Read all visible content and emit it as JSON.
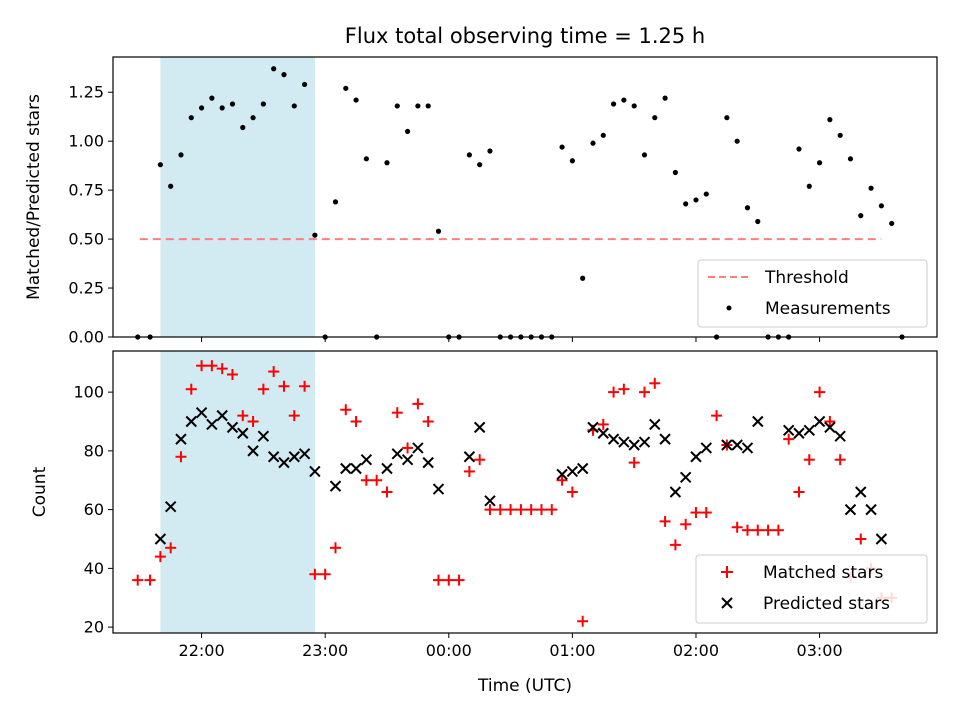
{
  "chart_data": [
    {
      "type": "scatter",
      "title": "Flux total observing time = 1.25 h",
      "xlabel": "",
      "ylabel": "Matched/Predicted stars",
      "xlim": [
        "21:17",
        "03:57"
      ],
      "ylim": [
        0,
        1.43
      ],
      "yticks": [
        "0.00",
        "0.25",
        "0.50",
        "0.75",
        "1.00",
        "1.25"
      ],
      "grid": false,
      "legend_position": "lower-right",
      "highlight_span": {
        "start": "21:40",
        "end": "22:55",
        "color": "#add8e6"
      },
      "threshold": {
        "name": "Threshold",
        "value": 0.5,
        "x_start": "21:30",
        "x_end": "03:30",
        "color": "#ff7f7f"
      },
      "series": [
        {
          "name": "Measurements",
          "color": "#000000",
          "points": [
            [
              "21:29",
              0
            ],
            [
              "21:35",
              0
            ],
            [
              "21:40",
              0.88
            ],
            [
              "21:45",
              0.77
            ],
            [
              "21:50",
              0.93
            ],
            [
              "21:55",
              1.12
            ],
            [
              "22:00",
              1.17
            ],
            [
              "22:05",
              1.22
            ],
            [
              "22:10",
              1.17
            ],
            [
              "22:15",
              1.19
            ],
            [
              "22:20",
              1.07
            ],
            [
              "22:25",
              1.12
            ],
            [
              "22:30",
              1.19
            ],
            [
              "22:35",
              1.37
            ],
            [
              "22:40",
              1.34
            ],
            [
              "22:45",
              1.18
            ],
            [
              "22:50",
              1.29
            ],
            [
              "22:55",
              0.52
            ],
            [
              "23:00",
              0
            ],
            [
              "23:05",
              0.69
            ],
            [
              "23:10",
              1.27
            ],
            [
              "23:15",
              1.21
            ],
            [
              "23:20",
              0.91
            ],
            [
              "23:25",
              0
            ],
            [
              "23:30",
              0.89
            ],
            [
              "23:35",
              1.18
            ],
            [
              "23:40",
              1.05
            ],
            [
              "23:45",
              1.18
            ],
            [
              "23:50",
              1.18
            ],
            [
              "23:55",
              0.54
            ],
            [
              "00:00",
              0
            ],
            [
              "00:05",
              0
            ],
            [
              "00:10",
              0.93
            ],
            [
              "00:15",
              0.88
            ],
            [
              "00:20",
              0.95
            ],
            [
              "00:25",
              0
            ],
            [
              "00:30",
              0
            ],
            [
              "00:35",
              0
            ],
            [
              "00:40",
              0
            ],
            [
              "00:45",
              0
            ],
            [
              "00:50",
              0
            ],
            [
              "00:55",
              0.97
            ],
            [
              "01:00",
              0.9
            ],
            [
              "01:05",
              0.3
            ],
            [
              "01:10",
              0.99
            ],
            [
              "01:15",
              1.03
            ],
            [
              "01:20",
              1.19
            ],
            [
              "01:25",
              1.21
            ],
            [
              "01:30",
              1.18
            ],
            [
              "01:35",
              0.93
            ],
            [
              "01:40",
              1.12
            ],
            [
              "01:45",
              1.22
            ],
            [
              "01:50",
              0.84
            ],
            [
              "01:55",
              0.68
            ],
            [
              "02:00",
              0.7
            ],
            [
              "02:05",
              0.73
            ],
            [
              "02:10",
              0
            ],
            [
              "02:15",
              1.12
            ],
            [
              "02:20",
              1.0
            ],
            [
              "02:25",
              0.66
            ],
            [
              "02:30",
              0.59
            ],
            [
              "02:35",
              0
            ],
            [
              "02:40",
              0
            ],
            [
              "02:45",
              0
            ],
            [
              "02:50",
              0.96
            ],
            [
              "02:55",
              0.77
            ],
            [
              "03:00",
              0.89
            ],
            [
              "03:05",
              1.11
            ],
            [
              "03:10",
              1.03
            ],
            [
              "03:15",
              0.91
            ],
            [
              "03:20",
              0.62
            ],
            [
              "03:25",
              0.76
            ],
            [
              "03:30",
              0.67
            ],
            [
              "03:35",
              0.58
            ],
            [
              "03:40",
              0
            ]
          ]
        }
      ]
    },
    {
      "type": "scatter",
      "title": "",
      "xlabel": "Time (UTC)",
      "ylabel": "Count",
      "xlim": [
        "21:17",
        "03:57"
      ],
      "xticks": [
        "22:00",
        "23:00",
        "00:00",
        "01:00",
        "02:00",
        "03:00"
      ],
      "ylim": [
        18,
        114
      ],
      "yticks": [
        20,
        40,
        60,
        80,
        100
      ],
      "grid": false,
      "legend_position": "lower-right",
      "highlight_span": {
        "start": "21:40",
        "end": "22:55",
        "color": "#add8e6"
      },
      "series": [
        {
          "name": "Matched stars",
          "marker": "plus",
          "color": "#ff0000",
          "points": [
            [
              "21:29",
              36
            ],
            [
              "21:35",
              36
            ],
            [
              "21:40",
              44
            ],
            [
              "21:45",
              47
            ],
            [
              "21:50",
              78
            ],
            [
              "21:55",
              101
            ],
            [
              "22:00",
              109
            ],
            [
              "22:05",
              109
            ],
            [
              "22:10",
              108
            ],
            [
              "22:15",
              106
            ],
            [
              "22:20",
              92
            ],
            [
              "22:25",
              90
            ],
            [
              "22:30",
              101
            ],
            [
              "22:35",
              107
            ],
            [
              "22:40",
              102
            ],
            [
              "22:45",
              92
            ],
            [
              "22:50",
              102
            ],
            [
              "22:55",
              38
            ],
            [
              "23:00",
              38
            ],
            [
              "23:05",
              47
            ],
            [
              "23:10",
              94
            ],
            [
              "23:15",
              90
            ],
            [
              "23:20",
              70
            ],
            [
              "23:25",
              70
            ],
            [
              "23:30",
              66
            ],
            [
              "23:35",
              93
            ],
            [
              "23:40",
              81
            ],
            [
              "23:45",
              96
            ],
            [
              "23:50",
              90
            ],
            [
              "23:55",
              36
            ],
            [
              "00:00",
              36
            ],
            [
              "00:05",
              36
            ],
            [
              "00:10",
              73
            ],
            [
              "00:15",
              77
            ],
            [
              "00:20",
              60
            ],
            [
              "00:25",
              60
            ],
            [
              "00:30",
              60
            ],
            [
              "00:35",
              60
            ],
            [
              "00:40",
              60
            ],
            [
              "00:45",
              60
            ],
            [
              "00:50",
              60
            ],
            [
              "00:55",
              70
            ],
            [
              "01:00",
              66
            ],
            [
              "01:05",
              22
            ],
            [
              "01:10",
              87
            ],
            [
              "01:15",
              89
            ],
            [
              "01:20",
              100
            ],
            [
              "01:25",
              101
            ],
            [
              "01:30",
              76
            ],
            [
              "01:35",
              100
            ],
            [
              "01:40",
              103
            ],
            [
              "01:45",
              56
            ],
            [
              "01:50",
              48
            ],
            [
              "01:55",
              55
            ],
            [
              "02:00",
              59
            ],
            [
              "02:05",
              59
            ],
            [
              "02:10",
              92
            ],
            [
              "02:15",
              82
            ],
            [
              "02:20",
              54
            ],
            [
              "02:25",
              53
            ],
            [
              "02:30",
              53
            ],
            [
              "02:35",
              53
            ],
            [
              "02:40",
              53
            ],
            [
              "02:45",
              84
            ],
            [
              "02:50",
              66
            ],
            [
              "02:55",
              77
            ],
            [
              "03:00",
              100
            ],
            [
              "03:05",
              90
            ],
            [
              "03:10",
              77
            ],
            [
              "03:15",
              37
            ],
            [
              "03:20",
              50
            ],
            [
              "03:25",
              40
            ],
            [
              "03:30",
              30
            ],
            [
              "03:35",
              30
            ]
          ]
        },
        {
          "name": "Predicted stars",
          "marker": "x",
          "color": "#000000",
          "points": [
            [
              "21:40",
              50
            ],
            [
              "21:45",
              61
            ],
            [
              "21:50",
              84
            ],
            [
              "21:55",
              90
            ],
            [
              "22:00",
              93
            ],
            [
              "22:05",
              89
            ],
            [
              "22:10",
              92
            ],
            [
              "22:15",
              88
            ],
            [
              "22:20",
              86
            ],
            [
              "22:25",
              80
            ],
            [
              "22:30",
              85
            ],
            [
              "22:35",
              78
            ],
            [
              "22:40",
              76
            ],
            [
              "22:45",
              78
            ],
            [
              "22:50",
              79
            ],
            [
              "22:55",
              73
            ],
            [
              "23:05",
              68
            ],
            [
              "23:10",
              74
            ],
            [
              "23:15",
              74
            ],
            [
              "23:20",
              77
            ],
            [
              "23:30",
              74
            ],
            [
              "23:35",
              79
            ],
            [
              "23:40",
              77
            ],
            [
              "23:45",
              81
            ],
            [
              "23:50",
              76
            ],
            [
              "23:55",
              67
            ],
            [
              "00:10",
              78
            ],
            [
              "00:15",
              88
            ],
            [
              "00:20",
              63
            ],
            [
              "00:55",
              72
            ],
            [
              "01:00",
              73
            ],
            [
              "01:05",
              74
            ],
            [
              "01:10",
              88
            ],
            [
              "01:15",
              86
            ],
            [
              "01:20",
              84
            ],
            [
              "01:25",
              83
            ],
            [
              "01:30",
              82
            ],
            [
              "01:35",
              83
            ],
            [
              "01:40",
              89
            ],
            [
              "01:45",
              84
            ],
            [
              "01:50",
              66
            ],
            [
              "01:55",
              71
            ],
            [
              "02:00",
              78
            ],
            [
              "02:05",
              81
            ],
            [
              "02:15",
              82
            ],
            [
              "02:20",
              82
            ],
            [
              "02:25",
              81
            ],
            [
              "02:30",
              90
            ],
            [
              "02:45",
              87
            ],
            [
              "02:50",
              86
            ],
            [
              "02:55",
              87
            ],
            [
              "03:00",
              90
            ],
            [
              "03:05",
              88
            ],
            [
              "03:10",
              85
            ],
            [
              "03:15",
              60
            ],
            [
              "03:20",
              66
            ],
            [
              "03:25",
              60
            ],
            [
              "03:30",
              50
            ]
          ]
        }
      ]
    }
  ]
}
